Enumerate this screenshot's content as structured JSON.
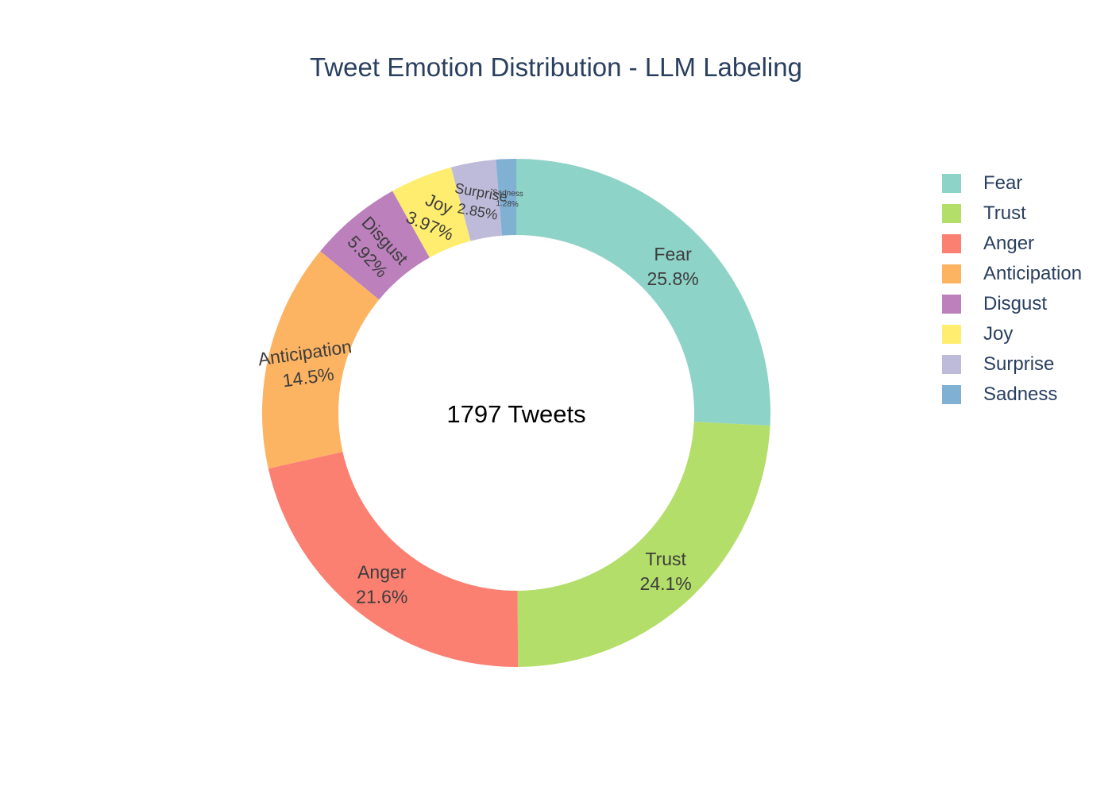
{
  "chart_data": {
    "type": "pie",
    "title": "Tweet Emotion Distribution - LLM Labeling",
    "center_annotation": "1797 Tweets",
    "hole": true,
    "legend_position": "right",
    "slices": [
      {
        "label": "Fear",
        "percent": 25.8,
        "percent_text": "25.8%",
        "color": "#8dd3c7"
      },
      {
        "label": "Trust",
        "percent": 24.1,
        "percent_text": "24.1%",
        "color": "#b3de69"
      },
      {
        "label": "Anger",
        "percent": 21.6,
        "percent_text": "21.6%",
        "color": "#fb8072"
      },
      {
        "label": "Anticipation",
        "percent": 14.5,
        "percent_text": "14.5%",
        "color": "#fdb462"
      },
      {
        "label": "Disgust",
        "percent": 5.92,
        "percent_text": "5.92%",
        "color": "#bc80bd"
      },
      {
        "label": "Joy",
        "percent": 3.97,
        "percent_text": "3.97%",
        "color": "#ffed6f"
      },
      {
        "label": "Surprise",
        "percent": 2.85,
        "percent_text": "2.85%",
        "color": "#bebada"
      },
      {
        "label": "Sadness",
        "percent": 1.28,
        "percent_text": "1.28%",
        "color": "#80b1d3"
      }
    ],
    "legend": [
      "Fear",
      "Trust",
      "Anger",
      "Anticipation",
      "Disgust",
      "Joy",
      "Surprise",
      "Sadness"
    ]
  }
}
